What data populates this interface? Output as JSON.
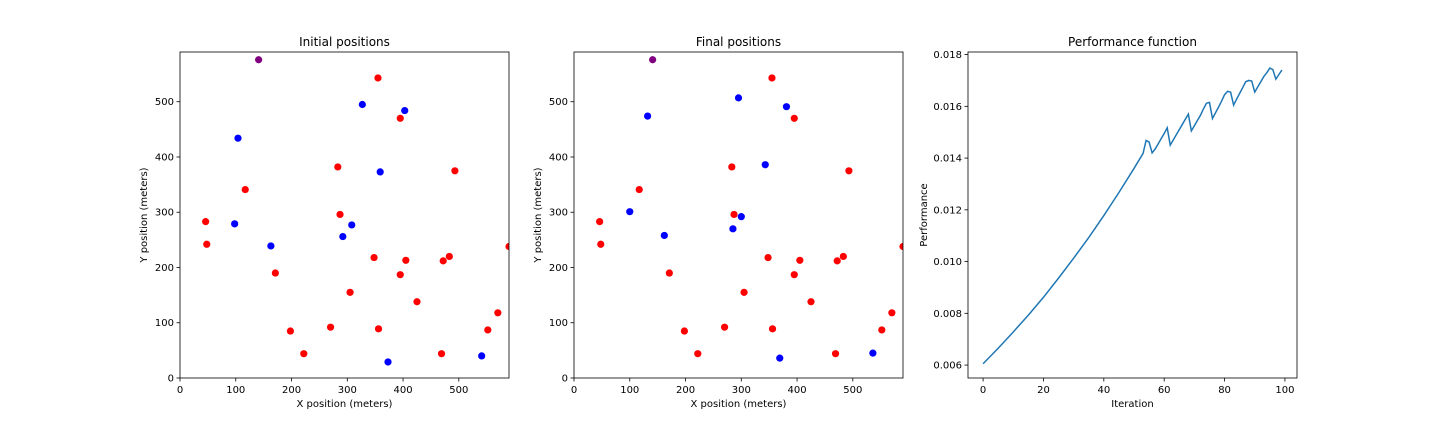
{
  "chart_data": [
    {
      "type": "scatter",
      "title": "Initial positions",
      "xlabel": "X position (meters)",
      "ylabel": "Y position (meters)",
      "xlim": [
        0,
        590
      ],
      "ylim": [
        0,
        590
      ],
      "xticks": [
        0,
        100,
        200,
        300,
        400,
        500
      ],
      "yticks": [
        0,
        100,
        200,
        300,
        400,
        500
      ],
      "grid": false,
      "series": [
        {
          "color": "#ff0000",
          "points": [
            [
              355,
              543
            ],
            [
              395,
              470
            ],
            [
              493,
              375
            ],
            [
              283,
              382
            ],
            [
              117,
              341
            ],
            [
              46,
              283
            ],
            [
              48,
              242
            ],
            [
              287,
              296
            ],
            [
              171,
              190
            ],
            [
              348,
              218
            ],
            [
              395,
              187
            ],
            [
              405,
              213
            ],
            [
              472,
              212
            ],
            [
              483,
              220
            ],
            [
              590,
              238
            ],
            [
              305,
              155
            ],
            [
              425,
              138
            ],
            [
              198,
              85
            ],
            [
              270,
              92
            ],
            [
              356,
              89
            ],
            [
              222,
              44
            ],
            [
              469,
              44
            ],
            [
              552,
              87
            ],
            [
              570,
              118
            ]
          ]
        },
        {
          "color": "#0000ff",
          "points": [
            [
              327,
              495
            ],
            [
              403,
              484
            ],
            [
              104,
              434
            ],
            [
              359,
              373
            ],
            [
              98,
              279
            ],
            [
              163,
              239
            ],
            [
              308,
              277
            ],
            [
              292,
              256
            ],
            [
              373,
              29
            ],
            [
              541,
              40
            ]
          ]
        },
        {
          "color": "#800080",
          "points": [
            [
              141,
              576
            ]
          ]
        }
      ]
    },
    {
      "type": "scatter",
      "title": "Final positions",
      "xlabel": "X position (meters)",
      "ylabel": "Y position (meters)",
      "xlim": [
        0,
        590
      ],
      "ylim": [
        0,
        590
      ],
      "xticks": [
        0,
        100,
        200,
        300,
        400,
        500
      ],
      "yticks": [
        0,
        100,
        200,
        300,
        400,
        500
      ],
      "grid": false,
      "series": [
        {
          "color": "#ff0000",
          "points": [
            [
              355,
              543
            ],
            [
              395,
              470
            ],
            [
              493,
              375
            ],
            [
              283,
              382
            ],
            [
              117,
              341
            ],
            [
              46,
              283
            ],
            [
              48,
              242
            ],
            [
              287,
              296
            ],
            [
              171,
              190
            ],
            [
              348,
              218
            ],
            [
              395,
              187
            ],
            [
              405,
              213
            ],
            [
              472,
              212
            ],
            [
              483,
              220
            ],
            [
              590,
              238
            ],
            [
              305,
              155
            ],
            [
              425,
              138
            ],
            [
              198,
              85
            ],
            [
              270,
              92
            ],
            [
              356,
              89
            ],
            [
              222,
              44
            ],
            [
              469,
              44
            ],
            [
              552,
              87
            ],
            [
              570,
              118
            ]
          ]
        },
        {
          "color": "#0000ff",
          "points": [
            [
              295,
              507
            ],
            [
              381,
              491
            ],
            [
              132,
              474
            ],
            [
              343,
              386
            ],
            [
              100,
              301
            ],
            [
              162,
              258
            ],
            [
              300,
              292
            ],
            [
              285,
              270
            ],
            [
              369,
              36
            ],
            [
              536,
              45
            ]
          ]
        },
        {
          "color": "#800080",
          "points": [
            [
              141,
              576
            ]
          ]
        }
      ]
    },
    {
      "type": "line",
      "title": "Performance function",
      "xlabel": "Iteration",
      "ylabel": "Performance",
      "xlim": [
        -5,
        104
      ],
      "ylim": [
        0.0055,
        0.0181
      ],
      "xticks": [
        0,
        20,
        40,
        60,
        80,
        100
      ],
      "yticks": [
        0.006,
        0.008,
        0.01,
        0.012,
        0.014,
        0.016,
        0.018
      ],
      "ytick_labels": [
        "0.006",
        "0.008",
        "0.010",
        "0.012",
        "0.014",
        "0.016",
        "0.018"
      ],
      "grid": false,
      "series": [
        {
          "color": "#1f77b4",
          "x": [
            0,
            5,
            10,
            15,
            20,
            25,
            30,
            35,
            40,
            45,
            50,
            53,
            54,
            55,
            56,
            57,
            58,
            59,
            60,
            61,
            62,
            63,
            64,
            65,
            66,
            67,
            68,
            69,
            70,
            71,
            72,
            73,
            74,
            75,
            76,
            77,
            78,
            79,
            80,
            81,
            82,
            83,
            84,
            85,
            86,
            87,
            88,
            89,
            90,
            91,
            92,
            93,
            94,
            95,
            96,
            97,
            98,
            99
          ],
          "y": [
            0.00605,
            0.00665,
            0.00728,
            0.00793,
            0.00862,
            0.00936,
            0.01013,
            0.01093,
            0.01178,
            0.01267,
            0.0136,
            0.01418,
            0.01468,
            0.01462,
            0.0142,
            0.01435,
            0.01455,
            0.01475,
            0.01495,
            0.01517,
            0.0145,
            0.0147,
            0.0149,
            0.0151,
            0.0153,
            0.0155,
            0.0157,
            0.01505,
            0.01525,
            0.01545,
            0.01565,
            0.0159,
            0.01612,
            0.01615,
            0.01553,
            0.01575,
            0.01597,
            0.0162,
            0.01645,
            0.01658,
            0.01655,
            0.01605,
            0.01628,
            0.0165,
            0.01672,
            0.01695,
            0.017,
            0.01698,
            0.01655,
            0.01675,
            0.01695,
            0.01715,
            0.0173,
            0.01748,
            0.01742,
            0.01705,
            0.01723,
            0.0174
          ]
        }
      ]
    }
  ]
}
